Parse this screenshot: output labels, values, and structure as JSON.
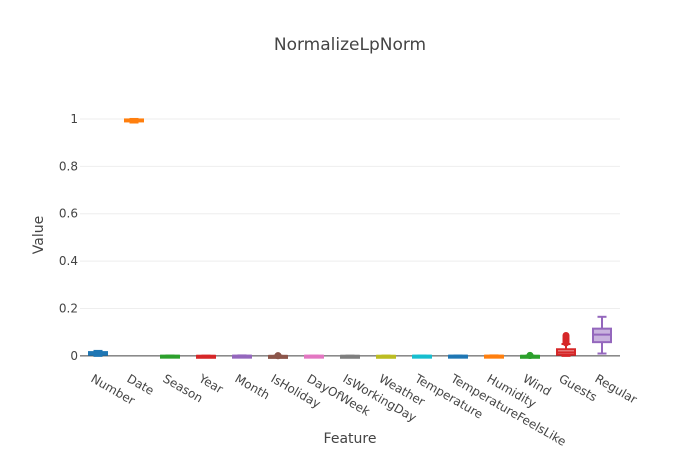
{
  "chart_data": {
    "type": "box",
    "title": "NormalizeLpNorm",
    "xlabel": "Feature",
    "ylabel": "Value",
    "ylim": [
      -0.03,
      1.08
    ],
    "yticks": [
      0,
      0.2,
      0.4,
      0.6,
      0.8,
      1
    ],
    "ytick_labels": [
      "0",
      "0.2",
      "0.4",
      "0.6",
      "0.8",
      "1"
    ],
    "grid": true,
    "legend": "none",
    "categories": [
      "Number",
      "Date",
      "Season",
      "Year",
      "Month",
      "IsHoliday",
      "DayOfWeek",
      "IsWorkingDay",
      "Weather",
      "Temperature",
      "TemperatureFeelsLike",
      "Humidity",
      "Wind",
      "Guests",
      "Regular"
    ],
    "series": [
      {
        "category": "Number",
        "color": "#1f77b4",
        "min": 0.0,
        "q1": 0.005,
        "median": 0.011,
        "q3": 0.016,
        "max": 0.021,
        "outliers": []
      },
      {
        "category": "Date",
        "color": "#ff7f0e",
        "min": 0.985,
        "q1": 0.991,
        "median": 0.995,
        "q3": 0.998,
        "max": 1.0,
        "outliers": []
      },
      {
        "category": "Season",
        "color": "#2ca02c",
        "min": 0.0,
        "q1": 0.0,
        "median": 0.0,
        "q3": 0.001,
        "max": 0.001,
        "outliers": []
      },
      {
        "category": "Year",
        "color": "#d62728",
        "min": 0.0,
        "q1": 0.0,
        "median": 0.0,
        "q3": 0.0005,
        "max": 0.0005,
        "outliers": []
      },
      {
        "category": "Month",
        "color": "#9467bd",
        "min": 0.0,
        "q1": 0.0,
        "median": 0.0005,
        "q3": 0.001,
        "max": 0.002,
        "outliers": []
      },
      {
        "category": "IsHoliday",
        "color": "#8c564b",
        "min": 0.0,
        "q1": 0.0,
        "median": 0.0,
        "q3": 0.0,
        "max": 0.0,
        "outliers": [
          0.0005,
          0.001
        ]
      },
      {
        "category": "DayOfWeek",
        "color": "#e377c2",
        "min": 0.0,
        "q1": 0.0,
        "median": 0.0005,
        "q3": 0.001,
        "max": 0.001,
        "outliers": []
      },
      {
        "category": "IsWorkingDay",
        "color": "#7f7f7f",
        "min": 0.0,
        "q1": 0.0,
        "median": 0.0,
        "q3": 0.0005,
        "max": 0.0005,
        "outliers": []
      },
      {
        "category": "Weather",
        "color": "#bcbd22",
        "min": 0.0,
        "q1": 0.0,
        "median": 0.0,
        "q3": 0.0005,
        "max": 0.001,
        "outliers": []
      },
      {
        "category": "Temperature",
        "color": "#17becf",
        "min": 0.0,
        "q1": 0.0,
        "median": 0.0005,
        "q3": 0.001,
        "max": 0.001,
        "outliers": []
      },
      {
        "category": "TemperatureFeelsLike",
        "color": "#1f77b4",
        "min": 0.0,
        "q1": 0.0,
        "median": 0.0005,
        "q3": 0.001,
        "max": 0.001,
        "outliers": []
      },
      {
        "category": "Humidity",
        "color": "#ff7f0e",
        "min": 0.0,
        "q1": 0.0,
        "median": 0.0005,
        "q3": 0.001,
        "max": 0.002,
        "outliers": []
      },
      {
        "category": "Wind",
        "color": "#2ca02c",
        "min": 0.0,
        "q1": 0.0,
        "median": 0.0,
        "q3": 0.0005,
        "max": 0.001,
        "outliers": [
          0.0015,
          0.002
        ]
      },
      {
        "category": "Guests",
        "color": "#d62728",
        "min": 0.0,
        "q1": 0.005,
        "median": 0.015,
        "q3": 0.028,
        "max": 0.05,
        "outliers": [
          0.055,
          0.062,
          0.068,
          0.074,
          0.08,
          0.086
        ]
      },
      {
        "category": "Regular",
        "color": "#9467bd",
        "min": 0.01,
        "q1": 0.058,
        "median": 0.09,
        "q3": 0.115,
        "max": 0.165,
        "outliers": []
      }
    ]
  }
}
